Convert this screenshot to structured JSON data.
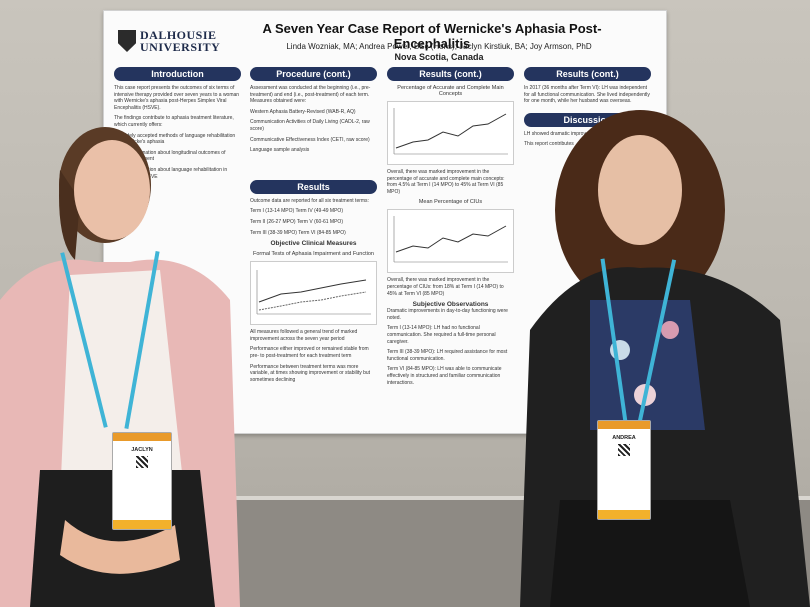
{
  "poster": {
    "logo_line1": "DALHOUSIE",
    "logo_line2": "UNIVERSITY",
    "title": "A Seven Year Case Report of Wernicke's Aphasia Post-Encephalitis",
    "authors": "Linda Wozniak, MA; Andrea Power, BSc (Hons); Jaclyn Kirstiuk, BA; Joy Armson, PhD",
    "location": "Nova Scotia, Canada",
    "columns": [
      {
        "header": "Introduction",
        "paragraphs": [
          "This case report presents the outcomes of six terms of intensive therapy provided over seven years to a woman with Wernicke's aphasia post-Herpes Simplex Viral Encephalitis (HSVE).",
          "The findings contribute to aphasia treatment literature, which currently offers:",
          "No widely accepted methods of language rehabilitation for Wernicke's aphasia",
          "Limited information about longitudinal outcomes of aphasia treatment",
          "Limited information about language rehabilitation in aphasia post-HSVE"
        ]
      },
      {
        "header": "Procedure (cont.)",
        "paragraphs": [
          "Assessment was conducted at the beginning (i.e., pre-treatment) and end (i.e., post-treatment) of each term. Measures obtained were:",
          "Western Aphasia Battery-Revised (WAB-R, AQ)",
          "Communication Activities of Daily Living (CADL-2, raw score)",
          "Communicative Effectiveness Index (CETI, raw score)",
          "Language sample analysis"
        ],
        "header2": "Results",
        "paragraphs2": [
          "Outcome data are reported for all six treatment terms:",
          "Term I (13-14 MPO)   Term IV (49-49 MPO)",
          "Term II (26-27 MPO)   Term V (60-61 MPO)",
          "Term III (38-39 MPO)   Term VI (84-85 MPO)"
        ],
        "subhead": "Objective Clinical Measures",
        "graph_title": "Formal Tests of Aphasia Impairment and Function",
        "paragraphs3": [
          "All measures followed a general trend of marked improvement across the seven year period",
          "Performance either improved or remained stable from pre- to post-treatment for each treatment term",
          "Performance between treatment terms was more variable, at times showing improvement or stability but sometimes declining"
        ]
      },
      {
        "header": "Results (cont.)",
        "graph_title": "Percentage of Accurate and Complete Main Concepts",
        "paragraphs": [
          "Overall, there was marked improvement in the percentage of accurate and complete main concepts: from 4.5% at Term I (14 MPO) to 45% at Term VI (85 MPO)"
        ],
        "graph_title2": "Mean Percentage of CIUs",
        "paragraphs2": [
          "Overall, there was marked improvement in the percentage of CIUs: from 18% at Term I (14 MPO) to 45% at Term VI (85 MPO)"
        ],
        "subhead": "Subjective Observations",
        "paragraphs3": [
          "Dramatic improvements in day-to-day functioning were noted.",
          "Term I (13-14 MPO): LH had no functional communication. She required a full-time personal caregiver.",
          "Term III (38-39 MPO): LH required assistance for most functional communication.",
          "Term VI (84-85 MPO): LH was able to communicate effectively in structured and familiar communication interactions."
        ]
      },
      {
        "header": "Results (cont.)",
        "paragraphs": [
          "In 2017 (36 months after Term VI): LH was independent for all functional communication. She lived independently for one month, while her husband was overseas."
        ],
        "header2": "Discussion",
        "paragraphs2": [
          "LH showed dramatic improvement",
          "This report contributes"
        ]
      }
    ]
  },
  "badges": [
    {
      "name": "JACLYN"
    },
    {
      "name": "ANDREA"
    }
  ]
}
